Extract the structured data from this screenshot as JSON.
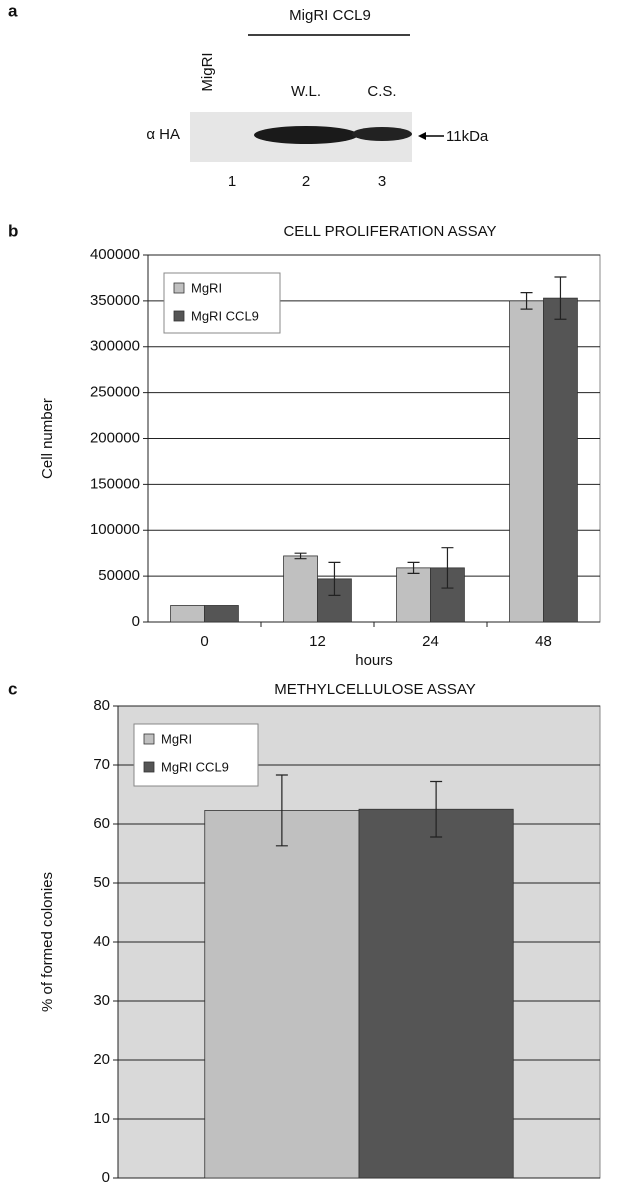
{
  "blot_panel": {
    "panel_label": "a",
    "header": "MigRI CCL9",
    "lanes": [
      {
        "label": "MigRI",
        "number": "1"
      },
      {
        "label": "W.L.",
        "number": "2"
      },
      {
        "label": "C.S.",
        "number": "3"
      }
    ],
    "antibody": "α HA",
    "marker": "11kDa"
  },
  "chart_data": [
    {
      "type": "bar",
      "panel_label": "b",
      "title": "CELL PROLIFERATION ASSAY",
      "y_label": "Cell number",
      "x_label": "hours",
      "categories": [
        "0",
        "12",
        "24",
        "48"
      ],
      "series": [
        {
          "name": "MgRI",
          "color": "#c0c0c0",
          "values": [
            18000,
            72000,
            59000,
            350000
          ],
          "errors": [
            null,
            3000,
            6000,
            9000
          ]
        },
        {
          "name": "MgRI CCL9",
          "color": "#555555",
          "values": [
            18000,
            47000,
            59000,
            353000
          ],
          "errors": [
            null,
            18000,
            22000,
            23000
          ]
        }
      ],
      "ylim": [
        0,
        400000
      ],
      "yticks": [
        0,
        50000,
        100000,
        150000,
        200000,
        250000,
        300000,
        350000,
        400000
      ],
      "grid": true,
      "legend": "upper left",
      "plot_background": "#ffffff"
    },
    {
      "type": "bar",
      "panel_label": "c",
      "title": "METHYLCELLULOSE ASSAY",
      "y_label": "% of formed colonies",
      "categories": [
        null
      ],
      "series": [
        {
          "name": "MgRI",
          "color": "#c0c0c0",
          "values": [
            62.3
          ],
          "errors": [
            6
          ]
        },
        {
          "name": "MgRI CCL9",
          "color": "#555555",
          "values": [
            62.5
          ],
          "errors": [
            4.7
          ]
        }
      ],
      "ylim": [
        0,
        80
      ],
      "yticks": [
        0,
        10,
        20,
        30,
        40,
        50,
        60,
        70,
        80
      ],
      "grid": true,
      "legend": "upper left",
      "plot_background": "#d9d9d9"
    }
  ]
}
